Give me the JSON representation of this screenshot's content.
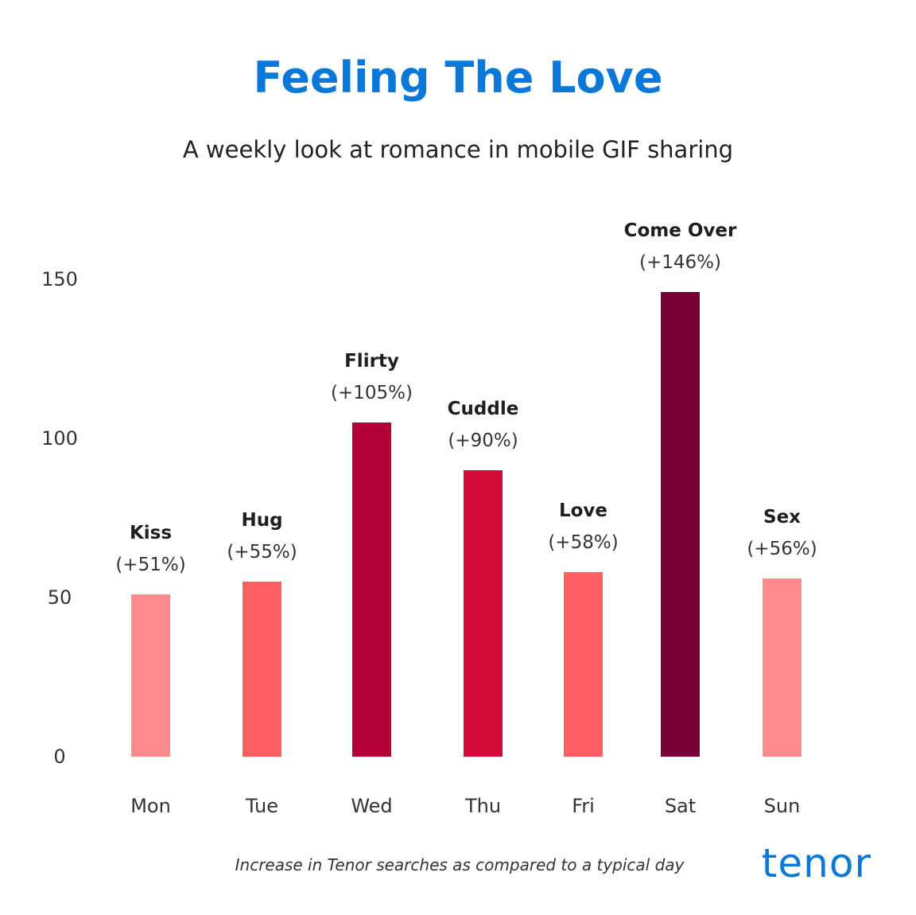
{
  "colors": {
    "title": "#0a78d8",
    "logo": "#0a78d8",
    "text": "#222222"
  },
  "chart_data": {
    "type": "bar",
    "title": "Feeling The Love",
    "subtitle": "A weekly look at romance in mobile GIF sharing",
    "footnote": "Increase in Tenor searches as compared to a typical day",
    "logo": "tenor",
    "categories": [
      "Mon",
      "Tue",
      "Wed",
      "Thu",
      "Fri",
      "Sat",
      "Sun"
    ],
    "values": [
      51,
      55,
      105,
      90,
      58,
      146,
      56
    ],
    "bar_labels": [
      "Kiss",
      "Hug",
      "Flirty",
      "Cuddle",
      "Love",
      "Come Over",
      "Sex"
    ],
    "value_labels": [
      "(+51%)",
      "(+55%)",
      "(+105%)",
      "(+90%)",
      "(+58%)",
      "(+146%)",
      "(+56%)"
    ],
    "bar_colors": [
      "#ff8a8e",
      "#ff5f62",
      "#b30036",
      "#d20c38",
      "#ff5f62",
      "#7a0038",
      "#ff8a8e"
    ],
    "ylim": [
      0,
      150
    ],
    "yticks": [
      "0",
      "50",
      "100",
      "150"
    ],
    "xlabel": "",
    "ylabel": "",
    "grid": false,
    "legend": "none"
  }
}
